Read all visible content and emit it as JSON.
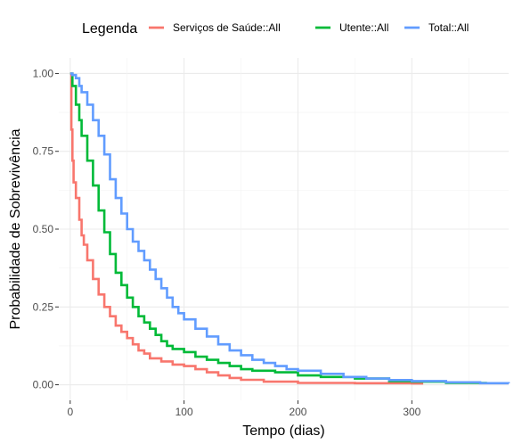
{
  "chart_data": {
    "type": "line",
    "title": "",
    "xlabel": "Tempo (dias)",
    "ylabel": "Probabilidade de Sobrevivência",
    "xlim": [
      -10,
      385
    ],
    "ylim": [
      -0.05,
      1.05
    ],
    "x_ticks": [
      0,
      100,
      200,
      300
    ],
    "x_tick_labels": [
      "0",
      "100",
      "200",
      "300"
    ],
    "y_ticks": [
      0,
      0.25,
      0.5,
      0.75,
      1
    ],
    "y_tick_labels": [
      "0.00",
      "0.25",
      "0.50",
      "0.75",
      "1.00"
    ],
    "grid": true,
    "legend": {
      "title": "Legenda",
      "position": "top"
    },
    "series": [
      {
        "name": "Serviços de Saúde::All",
        "color": "#f8766d",
        "points": [
          [
            0,
            1.0
          ],
          [
            1,
            0.82
          ],
          [
            2,
            0.72
          ],
          [
            3,
            0.65
          ],
          [
            5,
            0.6
          ],
          [
            8,
            0.53
          ],
          [
            10,
            0.48
          ],
          [
            12,
            0.45
          ],
          [
            15,
            0.4
          ],
          [
            20,
            0.34
          ],
          [
            25,
            0.29
          ],
          [
            30,
            0.25
          ],
          [
            35,
            0.22
          ],
          [
            40,
            0.19
          ],
          [
            45,
            0.17
          ],
          [
            50,
            0.15
          ],
          [
            55,
            0.13
          ],
          [
            60,
            0.11
          ],
          [
            65,
            0.1
          ],
          [
            70,
            0.085
          ],
          [
            80,
            0.075
          ],
          [
            90,
            0.065
          ],
          [
            100,
            0.06
          ],
          [
            110,
            0.05
          ],
          [
            120,
            0.04
          ],
          [
            130,
            0.03
          ],
          [
            140,
            0.022
          ],
          [
            150,
            0.016
          ],
          [
            170,
            0.01
          ],
          [
            200,
            0.006
          ],
          [
            250,
            0.005
          ],
          [
            300,
            0.004
          ],
          [
            310,
            0.004
          ]
        ]
      },
      {
        "name": "Utente::All",
        "color": "#00ba38",
        "points": [
          [
            0,
            1.0
          ],
          [
            2,
            0.96
          ],
          [
            5,
            0.9
          ],
          [
            8,
            0.85
          ],
          [
            10,
            0.8
          ],
          [
            15,
            0.72
          ],
          [
            20,
            0.64
          ],
          [
            25,
            0.56
          ],
          [
            30,
            0.49
          ],
          [
            35,
            0.42
          ],
          [
            40,
            0.36
          ],
          [
            45,
            0.32
          ],
          [
            50,
            0.28
          ],
          [
            55,
            0.25
          ],
          [
            60,
            0.22
          ],
          [
            65,
            0.2
          ],
          [
            70,
            0.18
          ],
          [
            75,
            0.16
          ],
          [
            80,
            0.14
          ],
          [
            85,
            0.125
          ],
          [
            90,
            0.115
          ],
          [
            100,
            0.105
          ],
          [
            110,
            0.09
          ],
          [
            120,
            0.08
          ],
          [
            130,
            0.07
          ],
          [
            140,
            0.06
          ],
          [
            150,
            0.05
          ],
          [
            160,
            0.045
          ],
          [
            180,
            0.04
          ],
          [
            200,
            0.03
          ],
          [
            220,
            0.025
          ],
          [
            250,
            0.02
          ],
          [
            280,
            0.012
          ],
          [
            300,
            0.01
          ],
          [
            330,
            0.006
          ],
          [
            365,
            0.005
          ]
        ]
      },
      {
        "name": "Total::All",
        "color": "#619cff",
        "points": [
          [
            0,
            1.0
          ],
          [
            2,
            0.995
          ],
          [
            5,
            0.985
          ],
          [
            8,
            0.96
          ],
          [
            10,
            0.94
          ],
          [
            15,
            0.9
          ],
          [
            20,
            0.85
          ],
          [
            25,
            0.8
          ],
          [
            30,
            0.74
          ],
          [
            35,
            0.66
          ],
          [
            40,
            0.6
          ],
          [
            45,
            0.55
          ],
          [
            50,
            0.5
          ],
          [
            55,
            0.46
          ],
          [
            60,
            0.43
          ],
          [
            65,
            0.4
          ],
          [
            70,
            0.37
          ],
          [
            75,
            0.34
          ],
          [
            80,
            0.31
          ],
          [
            85,
            0.28
          ],
          [
            90,
            0.25
          ],
          [
            95,
            0.23
          ],
          [
            100,
            0.21
          ],
          [
            110,
            0.18
          ],
          [
            120,
            0.155
          ],
          [
            130,
            0.13
          ],
          [
            140,
            0.11
          ],
          [
            150,
            0.095
          ],
          [
            160,
            0.08
          ],
          [
            170,
            0.07
          ],
          [
            180,
            0.06
          ],
          [
            190,
            0.05
          ],
          [
            200,
            0.045
          ],
          [
            220,
            0.035
          ],
          [
            240,
            0.025
          ],
          [
            260,
            0.02
          ],
          [
            280,
            0.015
          ],
          [
            300,
            0.012
          ],
          [
            330,
            0.008
          ],
          [
            360,
            0.005
          ],
          [
            385,
            0.004
          ]
        ]
      }
    ]
  }
}
